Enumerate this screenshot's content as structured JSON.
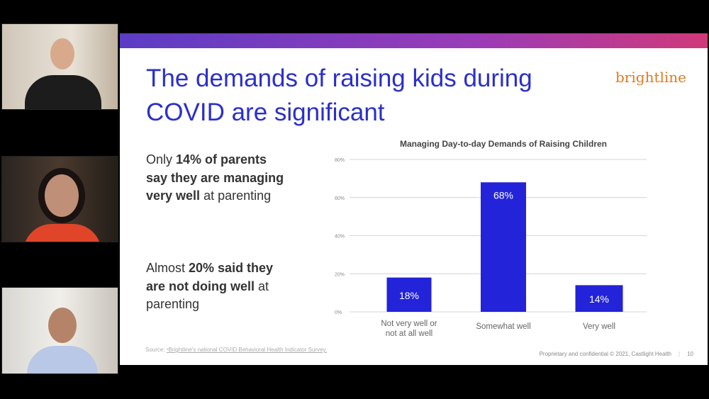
{
  "participants": [
    {
      "name": "participant-1"
    },
    {
      "name": "participant-2"
    },
    {
      "name": "participant-3"
    }
  ],
  "slide": {
    "title": "The demands of raising kids during COVID are significant",
    "logo": "brightline",
    "bullet1": {
      "pre": "Only ",
      "bold": "14% of parents say they are managing very well",
      "post": " at parenting"
    },
    "bullet2": {
      "pre": "Almost ",
      "bold": "20% said they are not doing well",
      "post": " at parenting"
    },
    "source_label": "Source: ",
    "source_link": "¹Brightline's national COVID Behavioral Health Indicator Survey.",
    "footer": "Proprietary and confidential © 2021, Castlight Health",
    "page": "10"
  },
  "chart_data": {
    "type": "bar",
    "title": "Managing Day-to-day Demands of Raising Children",
    "categories": [
      "Not very well or not at all well",
      "Somewhat well",
      "Very well"
    ],
    "category_lines": [
      [
        "Not very well or",
        "not at all well"
      ],
      [
        "Somewhat well"
      ],
      [
        "Very well"
      ]
    ],
    "values": [
      18,
      68,
      14
    ],
    "data_labels": [
      "18%",
      "68%",
      "14%"
    ],
    "yticks": [
      0,
      20,
      40,
      60,
      80
    ],
    "ytick_labels": [
      "0%",
      "20%",
      "40%",
      "60%",
      "80%"
    ],
    "ylim": [
      0,
      80
    ],
    "grid": true,
    "bar_color": "#2323d9"
  }
}
